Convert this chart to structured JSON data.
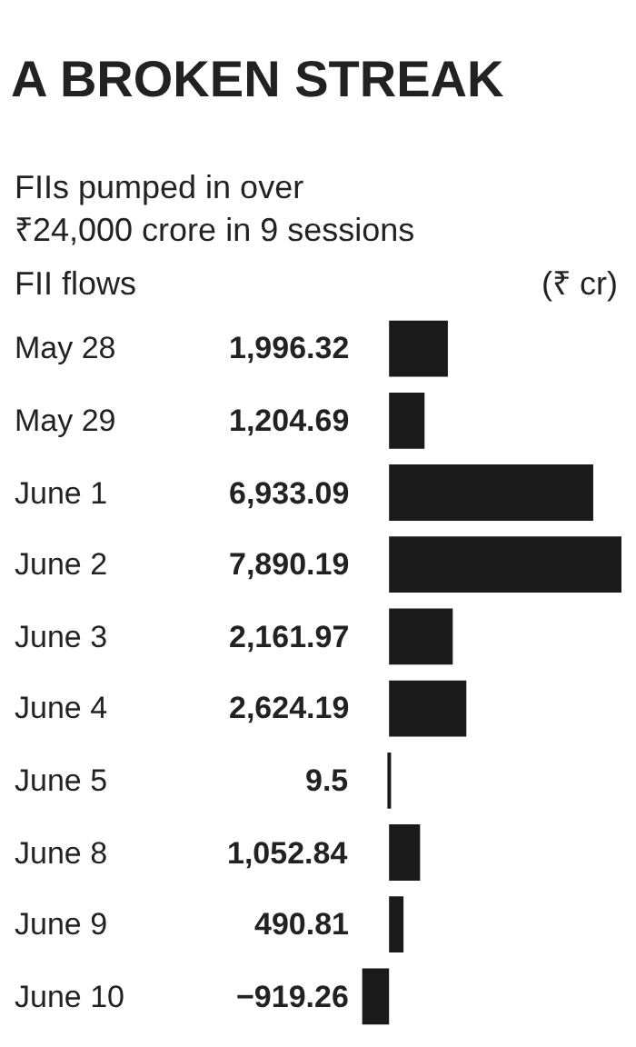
{
  "chart_data": {
    "type": "bar",
    "orientation": "horizontal",
    "title": "A BROKEN STREAK",
    "subtitle": "FIIs pumped in over\n₹24,000 crore in 9 sessions",
    "annotations": [
      "FII flows",
      "(₹ cr)"
    ],
    "categories": [
      "May 28",
      "May 29",
      "June 1",
      "June 2",
      "June 3",
      "June 4",
      "June 5",
      "June 8",
      "June 9",
      "June 10"
    ],
    "values": [
      1996.32,
      1204.69,
      6933.09,
      7890.19,
      2161.97,
      2624.19,
      9.5,
      1052.84,
      490.81,
      -919.26
    ],
    "value_labels": [
      "1,996.32",
      "1,204.69",
      "6,933.09",
      "7,890.19",
      "2,161.97",
      "2,624.19",
      "9.5",
      "1,052.84",
      "490.81",
      "−919.26"
    ],
    "color": "#1a1a1a"
  }
}
